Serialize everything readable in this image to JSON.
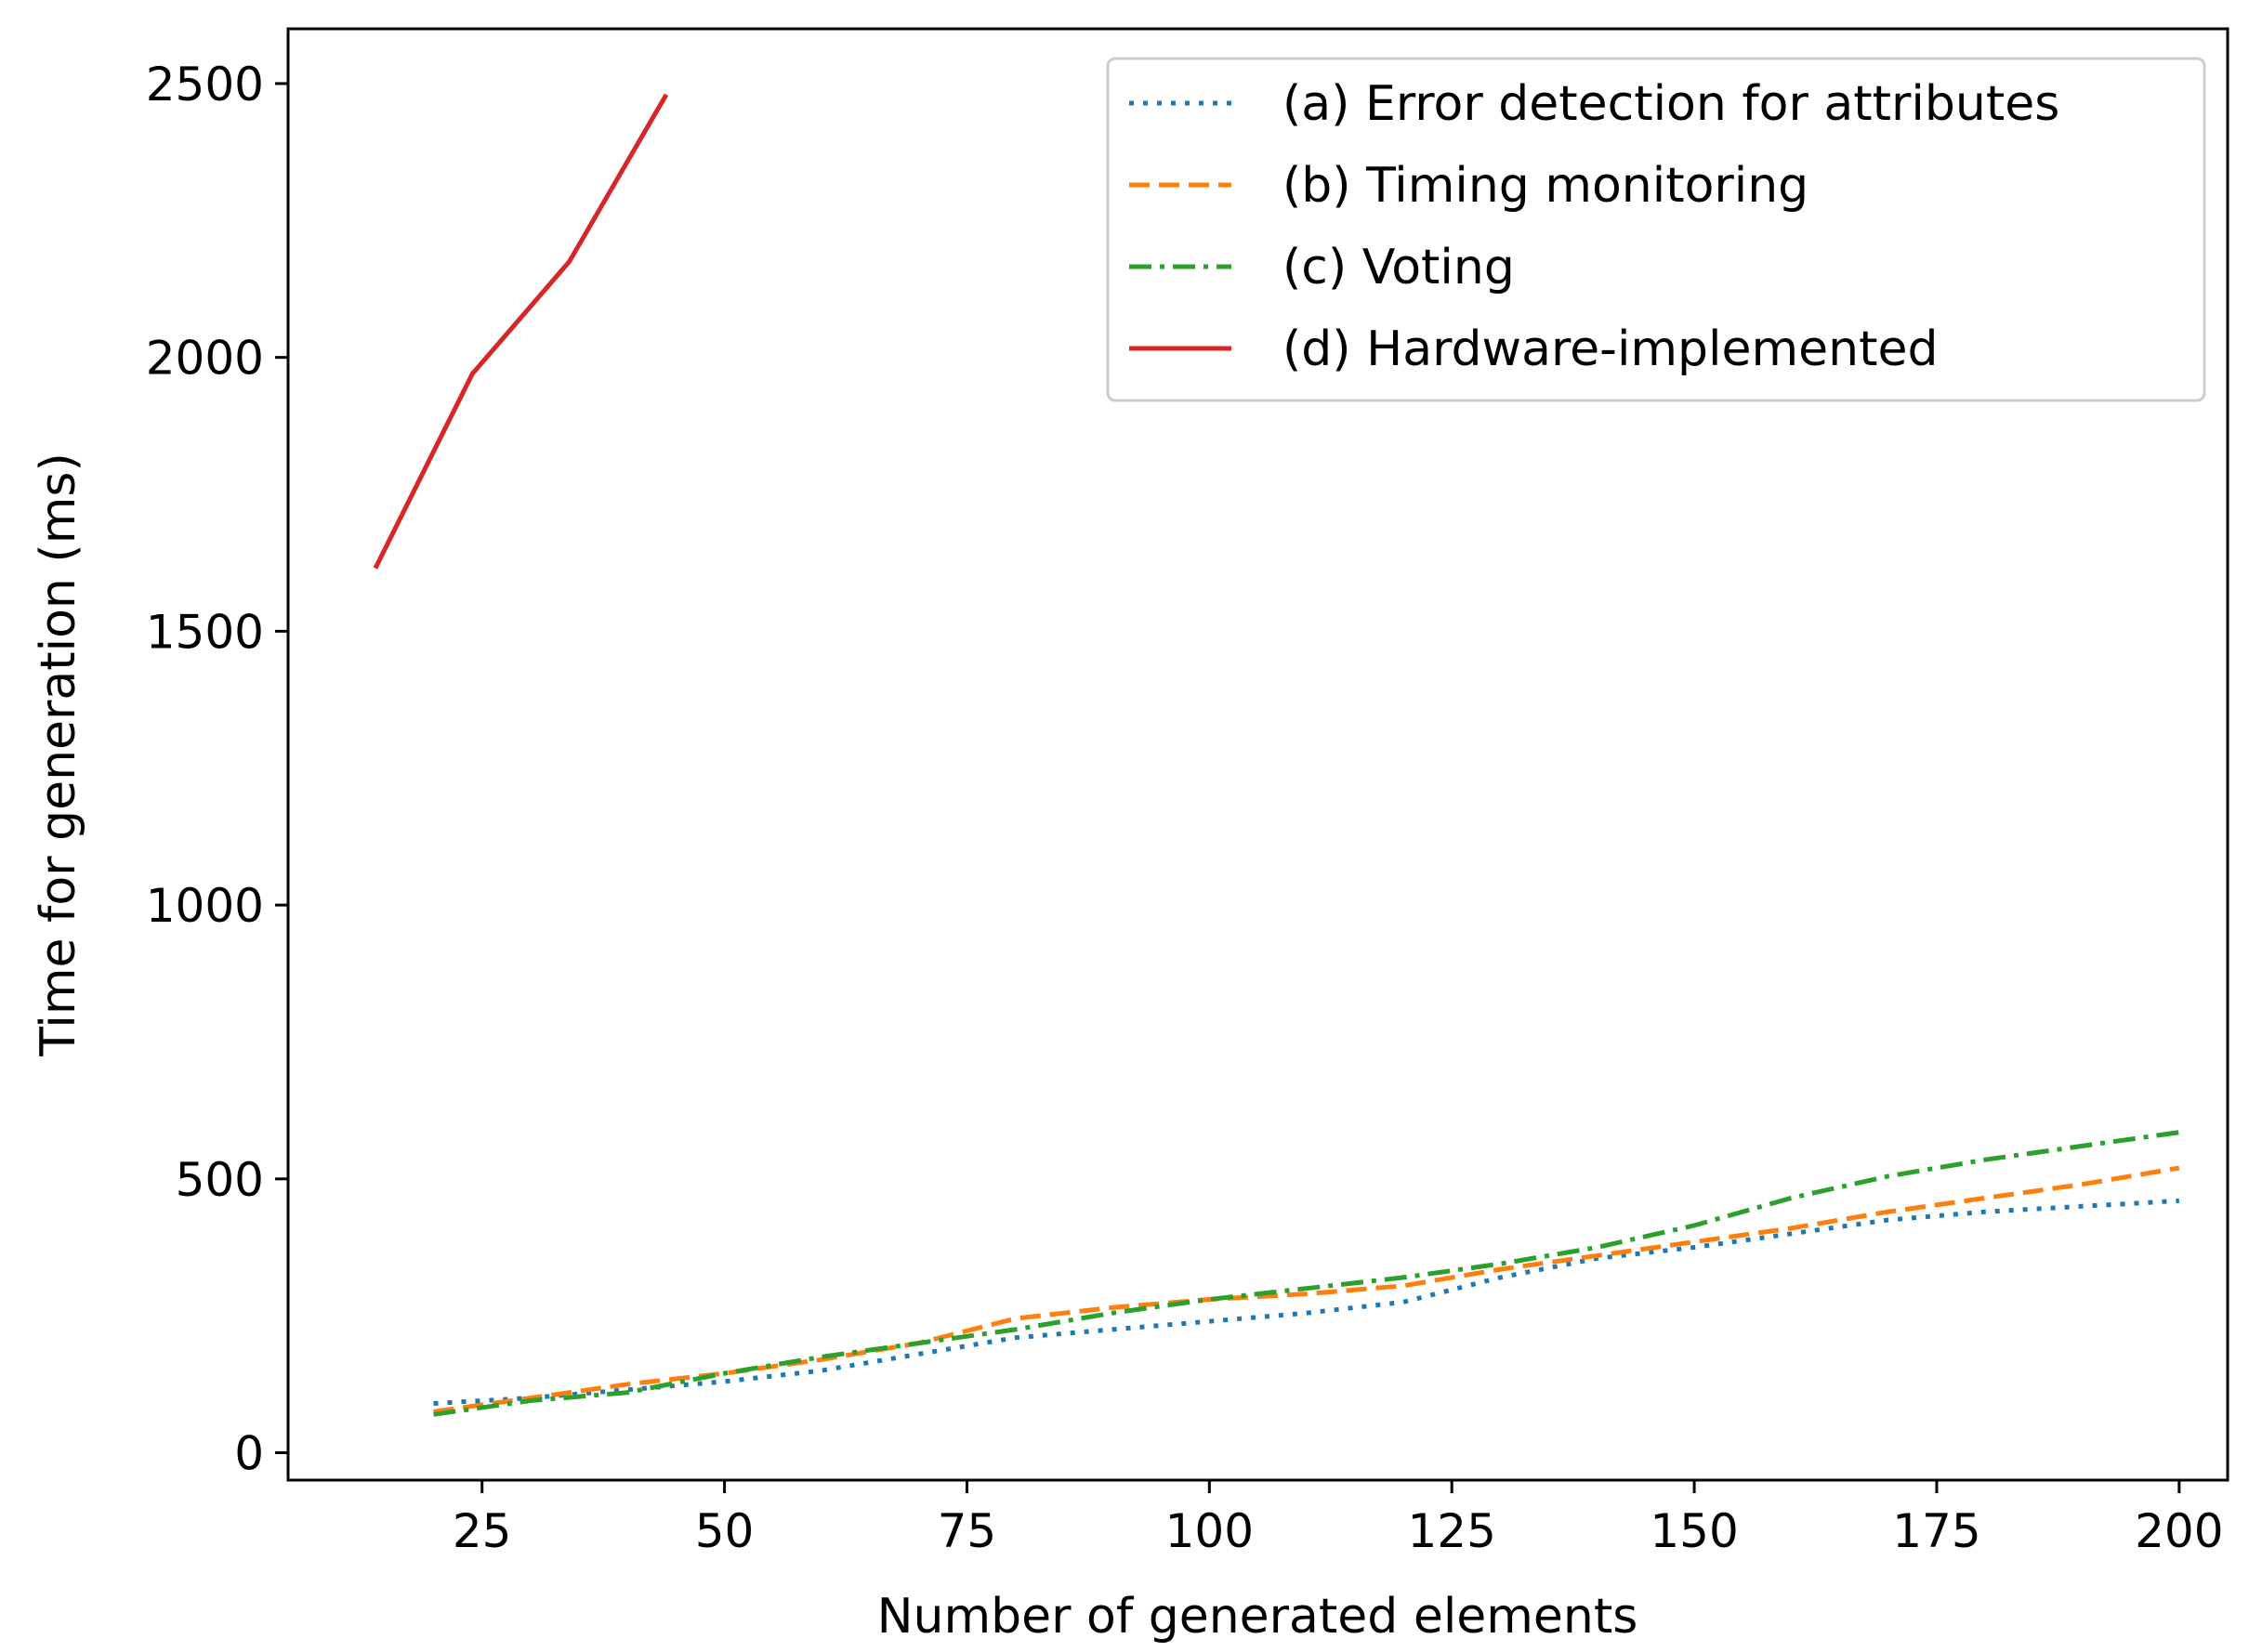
{
  "chart_data": {
    "type": "line",
    "xlabel": "Number of generated elements",
    "ylabel": "Time for generation (ms)",
    "xlim": [
      5,
      205
    ],
    "ylim": [
      -50,
      2600
    ],
    "xticks": [
      25,
      50,
      75,
      100,
      125,
      150,
      175,
      200
    ],
    "yticks": [
      0,
      500,
      1000,
      1500,
      2000,
      2500
    ],
    "grid": false,
    "legend_position": "top-right",
    "series": [
      {
        "name": "(a) Error detection for attributes",
        "color": "#1f77b4",
        "style": "dotted",
        "x": [
          20,
          30,
          40,
          50,
          60,
          70,
          80,
          90,
          100,
          110,
          120,
          130,
          140,
          150,
          160,
          170,
          180,
          190,
          200
        ],
        "y": [
          90,
          100,
          115,
          130,
          150,
          180,
          210,
          225,
          240,
          255,
          275,
          320,
          355,
          375,
          400,
          425,
          440,
          450,
          460
        ]
      },
      {
        "name": "(b) Timing monitoring",
        "color": "#ff7f0e",
        "style": "dashed",
        "x": [
          20,
          30,
          40,
          50,
          60,
          70,
          80,
          90,
          100,
          110,
          120,
          130,
          140,
          150,
          160,
          170,
          180,
          190,
          200
        ],
        "y": [
          75,
          100,
          125,
          145,
          170,
          200,
          245,
          265,
          280,
          290,
          305,
          335,
          360,
          385,
          410,
          440,
          465,
          490,
          520
        ]
      },
      {
        "name": "(c) Voting",
        "color": "#2ca02c",
        "style": "dashdot",
        "x": [
          20,
          30,
          40,
          50,
          60,
          70,
          80,
          90,
          100,
          110,
          120,
          130,
          140,
          150,
          160,
          170,
          180,
          190,
          200
        ],
        "y": [
          70,
          95,
          110,
          145,
          175,
          200,
          225,
          255,
          280,
          300,
          320,
          345,
          375,
          415,
          465,
          505,
          535,
          560,
          585
        ]
      },
      {
        "name": "(d) Hardware-implemented",
        "color": "#d62728",
        "style": "solid",
        "x": [
          14,
          24,
          34,
          44
        ],
        "y": [
          1615,
          1970,
          2175,
          2480
        ]
      }
    ]
  }
}
